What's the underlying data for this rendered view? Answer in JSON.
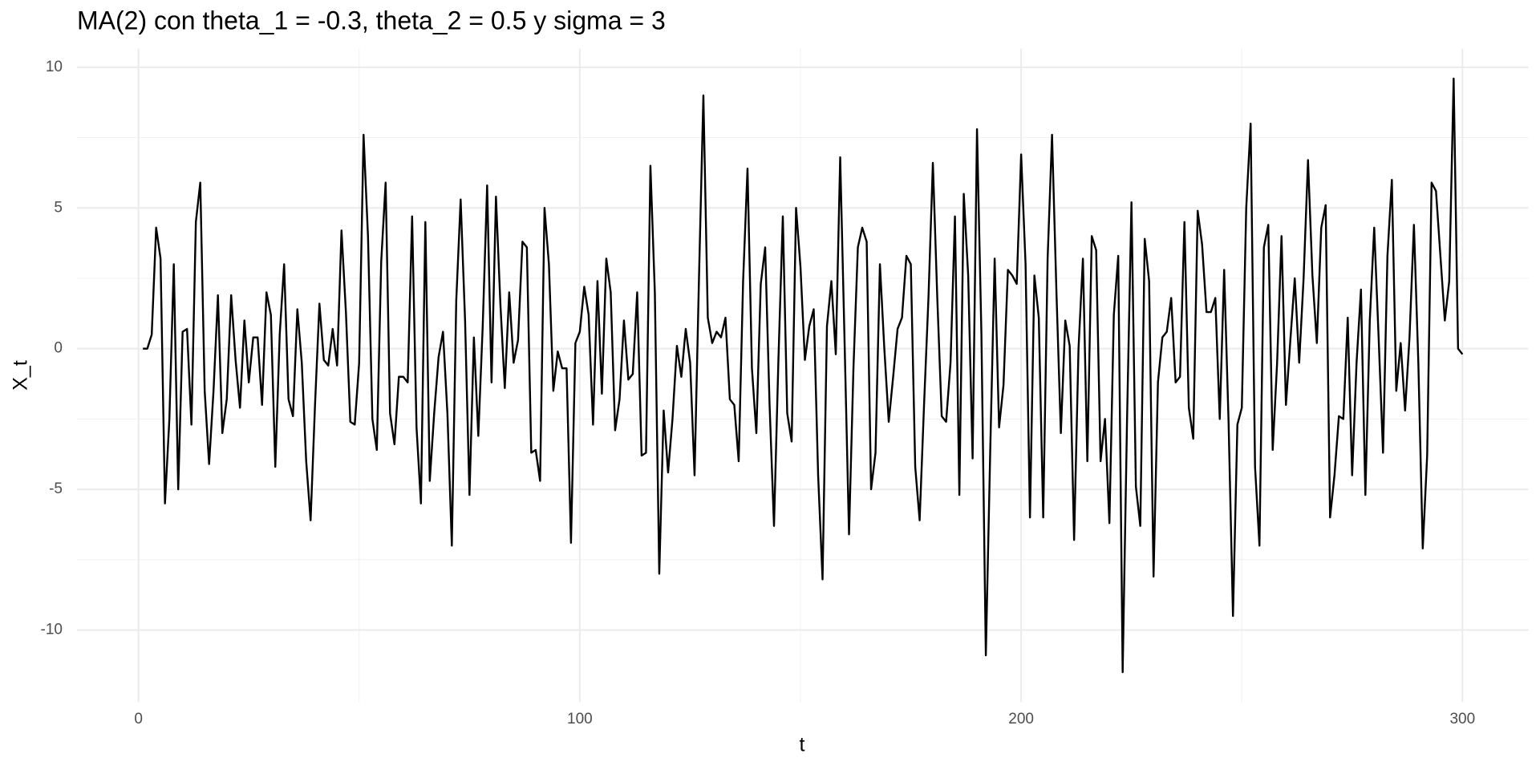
{
  "chart_data": {
    "type": "line",
    "title": "MA(2) con theta_1 = -0.3, theta_2 = 0.5 y sigma = 3",
    "x_label": "t",
    "y_label": "X_t",
    "xlim": [
      -13.95,
      314.95
    ],
    "ylim": [
      -12.56,
      10.66
    ],
    "xticks": [
      0,
      100,
      200,
      300
    ],
    "yticks": [
      -10,
      -5,
      0,
      5,
      10
    ],
    "grid": true,
    "minor_grid": true,
    "series": [
      {
        "color": "#000000",
        "x": [
          1,
          2,
          3,
          4,
          5,
          6,
          7,
          8,
          9,
          10,
          11,
          12,
          13,
          14,
          15,
          16,
          17,
          18,
          19,
          20,
          21,
          22,
          23,
          24,
          25,
          26,
          27,
          28,
          29,
          30,
          31,
          32,
          33,
          34,
          35,
          36,
          37,
          38,
          39,
          40,
          41,
          42,
          43,
          44,
          45,
          46,
          47,
          48,
          49,
          50,
          51,
          52,
          53,
          54,
          55,
          56,
          57,
          58,
          59,
          60,
          61,
          62,
          63,
          64,
          65,
          66,
          67,
          68,
          69,
          70,
          71,
          72,
          73,
          74,
          75,
          76,
          77,
          78,
          79,
          80,
          81,
          82,
          83,
          84,
          85,
          86,
          87,
          88,
          89,
          90,
          91,
          92,
          93,
          94,
          95,
          96,
          97,
          98,
          99,
          100,
          101,
          102,
          103,
          104,
          105,
          106,
          107,
          108,
          109,
          110,
          111,
          112,
          113,
          114,
          115,
          116,
          117,
          118,
          119,
          120,
          121,
          122,
          123,
          124,
          125,
          126,
          127,
          128,
          129,
          130,
          131,
          132,
          133,
          134,
          135,
          136,
          137,
          138,
          139,
          140,
          141,
          142,
          143,
          144,
          145,
          146,
          147,
          148,
          149,
          150,
          151,
          152,
          153,
          154,
          155,
          156,
          157,
          158,
          159,
          160,
          161,
          162,
          163,
          164,
          165,
          166,
          167,
          168,
          169,
          170,
          171,
          172,
          173,
          174,
          175,
          176,
          177,
          178,
          179,
          180,
          181,
          182,
          183,
          184,
          185,
          186,
          187,
          188,
          189,
          190,
          191,
          192,
          193,
          194,
          195,
          196,
          197,
          198,
          199,
          200,
          201,
          202,
          203,
          204,
          205,
          206,
          207,
          208,
          209,
          210,
          211,
          212,
          213,
          214,
          215,
          216,
          217,
          218,
          219,
          220,
          221,
          222,
          223,
          224,
          225,
          226,
          227,
          228,
          229,
          230,
          231,
          232,
          233,
          234,
          235,
          236,
          237,
          238,
          239,
          240,
          241,
          242,
          243,
          244,
          245,
          246,
          247,
          248,
          249,
          250,
          251,
          252,
          253,
          254,
          255,
          256,
          257,
          258,
          259,
          260,
          261,
          262,
          263,
          264,
          265,
          266,
          267,
          268,
          269,
          270,
          271,
          272,
          273,
          274,
          275,
          276,
          277,
          278,
          279,
          280,
          281,
          282,
          283,
          284,
          285,
          286,
          287,
          288,
          289,
          290,
          291,
          292,
          293,
          294,
          295,
          296,
          297,
          298,
          299,
          300
        ],
        "values": [
          0,
          0,
          0.5,
          4.3,
          3.2,
          -5.5,
          -2.5,
          3.0,
          -5.0,
          0.6,
          0.7,
          -2.7,
          4.5,
          5.9,
          -1.5,
          -4.1,
          -1.5,
          1.9,
          -3.0,
          -1.8,
          1.9,
          -0.4,
          -2.1,
          1.0,
          -1.2,
          0.4,
          0.4,
          -2.0,
          2.0,
          1.2,
          -4.2,
          0.5,
          3.0,
          -1.8,
          -2.4,
          1.4,
          -0.5,
          -4.0,
          -6.1,
          -2.0,
          1.6,
          -0.4,
          -0.6,
          0.7,
          -0.6,
          4.2,
          1.3,
          -2.6,
          -2.7,
          -0.5,
          7.6,
          4.0,
          -2.5,
          -3.6,
          3.1,
          5.9,
          -2.3,
          -3.4,
          -1.0,
          -1.0,
          -1.2,
          4.7,
          -2.8,
          -5.5,
          4.5,
          -4.7,
          -2.3,
          -0.3,
          0.6,
          -2.3,
          -7.0,
          1.7,
          5.3,
          1.0,
          -5.2,
          0.4,
          -3.1,
          0.8,
          5.8,
          -1.2,
          5.4,
          1.6,
          -1.4,
          2.0,
          -0.5,
          0.3,
          3.8,
          3.6,
          -3.7,
          -3.6,
          -4.7,
          5.0,
          3.0,
          -1.5,
          -0.1,
          -0.7,
          -0.7,
          -6.9,
          0.2,
          0.6,
          2.2,
          1.2,
          -2.7,
          2.4,
          -1.6,
          3.2,
          2.0,
          -2.9,
          -1.8,
          1.0,
          -1.1,
          -0.9,
          2.0,
          -3.8,
          -3.7,
          6.5,
          2.0,
          -8.0,
          -2.2,
          -4.4,
          -2.5,
          0.1,
          -1.0,
          0.7,
          -0.5,
          -4.5,
          2.5,
          9.0,
          1.1,
          0.2,
          0.6,
          0.4,
          1.1,
          -1.8,
          -2.0,
          -4.0,
          2.4,
          6.4,
          -0.7,
          -3.0,
          2.3,
          3.6,
          -2.0,
          -6.3,
          -0.4,
          4.7,
          -2.3,
          -3.3,
          5.0,
          2.9,
          -0.4,
          0.8,
          1.4,
          -4.5,
          -8.2,
          0.8,
          2.4,
          -0.2,
          6.8,
          0.2,
          -6.6,
          -0.7,
          3.6,
          4.3,
          3.8,
          -5.0,
          -3.7,
          3.0,
          0.0,
          -2.6,
          -1.0,
          0.7,
          1.1,
          3.3,
          3.0,
          -4.2,
          -6.1,
          -2.0,
          1.8,
          6.6,
          1.8,
          -2.4,
          -2.6,
          -0.5,
          4.7,
          -5.2,
          5.5,
          2.6,
          -3.9,
          7.8,
          0.5,
          -10.9,
          -3.6,
          3.2,
          -2.8,
          -1.3,
          2.8,
          2.6,
          2.3,
          6.9,
          3.0,
          -6.0,
          2.6,
          1.1,
          -6.0,
          3.2,
          7.6,
          2.0,
          -3.0,
          1.0,
          0.1,
          -6.8,
          0.0,
          3.2,
          -4.0,
          4.0,
          3.5,
          -4.0,
          -2.5,
          -6.2,
          1.2,
          3.3,
          -11.5,
          -2.5,
          5.2,
          -4.9,
          -6.3,
          3.9,
          2.4,
          -8.1,
          -1.2,
          0.4,
          0.6,
          1.8,
          -1.2,
          -1.0,
          4.5,
          -2.1,
          -3.2,
          4.9,
          3.7,
          1.3,
          1.3,
          1.8,
          -2.5,
          2.8,
          -2.6,
          -9.5,
          -2.7,
          -2.1,
          5.0,
          8.0,
          -4.2,
          -7.0,
          3.6,
          4.4,
          -3.6,
          -0.5,
          4.0,
          -2.0,
          0.3,
          2.5,
          -0.5,
          2.5,
          6.7,
          2.6,
          0.2,
          4.3,
          5.1,
          -6.0,
          -4.5,
          -2.4,
          -2.5,
          1.1,
          -4.5,
          -0.5,
          2.1,
          -5.2,
          1.0,
          4.3,
          0.4,
          -3.7,
          3.3,
          6.0,
          -1.5,
          0.2,
          -2.2,
          0.4,
          4.4,
          -0.5,
          -7.1,
          -3.8,
          5.9,
          5.6,
          3.3,
          1.0,
          2.4,
          9.6,
          0.0,
          -0.2
        ]
      }
    ]
  }
}
